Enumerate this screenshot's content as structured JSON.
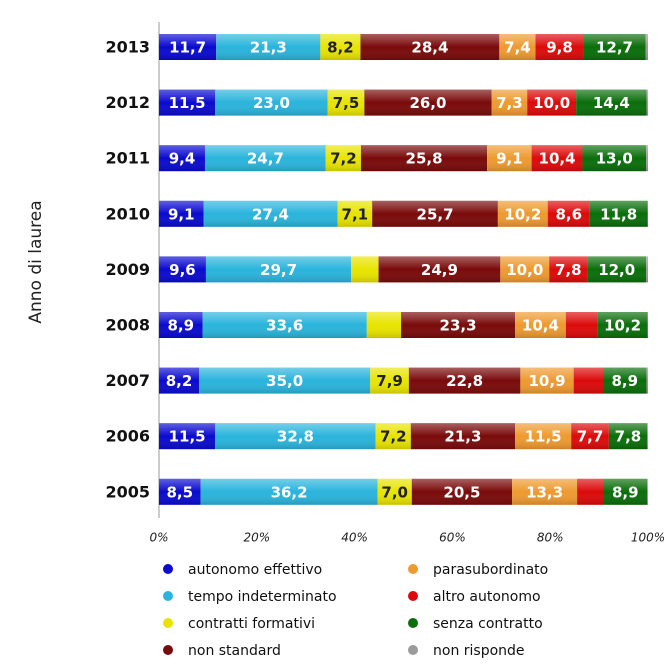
{
  "chart_data": {
    "type": "stacked_barh",
    "ylabel": "Anno di laurea",
    "categories": [
      "2013",
      "2012",
      "2011",
      "2010",
      "2009",
      "2008",
      "2007",
      "2006",
      "2005"
    ],
    "series": [
      {
        "name": "autonomo effettivo",
        "color": "#0a0ad0",
        "values": [
          11.7,
          11.5,
          9.4,
          9.1,
          9.6,
          8.9,
          8.2,
          11.5,
          8.5
        ],
        "value_labels": [
          "11,7",
          "11,5",
          "9,4",
          "9,1",
          "9,6",
          "8,9",
          "8,2",
          "11,5",
          "8,5"
        ]
      },
      {
        "name": "tempo indeterminato",
        "color": "#2ab4dc",
        "values": [
          21.3,
          23.0,
          24.7,
          27.4,
          29.7,
          33.6,
          35.0,
          32.8,
          36.2
        ],
        "value_labels": [
          "21,3",
          "23,0",
          "24,7",
          "27,4",
          "29,7",
          "33,6",
          "35,0",
          "32,8",
          "36,2"
        ]
      },
      {
        "name": "contratti formativi",
        "color": "#e8e400",
        "values": [
          8.2,
          7.5,
          7.2,
          7.1,
          5.6,
          7.0,
          7.9,
          7.2,
          7.0
        ],
        "value_labels": [
          "8,2",
          "7,5",
          "7,2",
          "7,1",
          null,
          null,
          "7,9",
          "7,2",
          "7,0"
        ]
      },
      {
        "name": "non standard",
        "color": "#7a0a0a",
        "values": [
          28.4,
          26.0,
          25.8,
          25.7,
          24.9,
          23.3,
          22.8,
          21.3,
          20.5
        ],
        "value_labels": [
          "28,4",
          "26,0",
          "25,8",
          "25,7",
          "24,9",
          "23,3",
          "22,8",
          "21,3",
          "20,5"
        ]
      },
      {
        "name": "parasubordinato",
        "color": "#ee9a30",
        "values": [
          7.4,
          7.3,
          9.1,
          10.2,
          10.0,
          10.4,
          10.9,
          11.5,
          13.3
        ],
        "value_labels": [
          "7,4",
          "7,3",
          "9,1",
          "10,2",
          "10,0",
          "10,4",
          "10,9",
          "11,5",
          "13,3"
        ]
      },
      {
        "name": "altro autonomo",
        "color": "#dc0a0a",
        "values": [
          9.8,
          10.0,
          10.4,
          8.6,
          7.8,
          6.5,
          6.0,
          7.7,
          5.4
        ],
        "value_labels": [
          "9,8",
          "10,0",
          "10,4",
          "8,6",
          "7,8",
          null,
          null,
          "7,7",
          null
        ]
      },
      {
        "name": "senza contratto",
        "color": "#0a6e0a",
        "values": [
          12.7,
          14.4,
          13.0,
          11.8,
          12.0,
          10.2,
          8.9,
          7.8,
          8.9
        ],
        "value_labels": [
          "12,7",
          "14,4",
          "13,0",
          "11,8",
          "12,0",
          "10,2",
          "8,9",
          "7,8",
          "8,9"
        ]
      },
      {
        "name": "non risponde",
        "color": "#9a9a9a",
        "values": [
          0.5,
          0.3,
          0.4,
          0.1,
          0.4,
          0.1,
          0.3,
          0.2,
          0.2
        ],
        "value_labels": [
          null,
          null,
          null,
          null,
          null,
          null,
          null,
          null,
          null
        ]
      }
    ],
    "xlim": [
      0,
      100
    ],
    "xticks": [
      {
        "value": 0,
        "label": "0%"
      },
      {
        "value": 20,
        "label": "20%"
      },
      {
        "value": 40,
        "label": "40%"
      },
      {
        "value": 60,
        "label": "60%"
      },
      {
        "value": 80,
        "label": "80%"
      },
      {
        "value": 100,
        "label": "100%"
      }
    ]
  }
}
